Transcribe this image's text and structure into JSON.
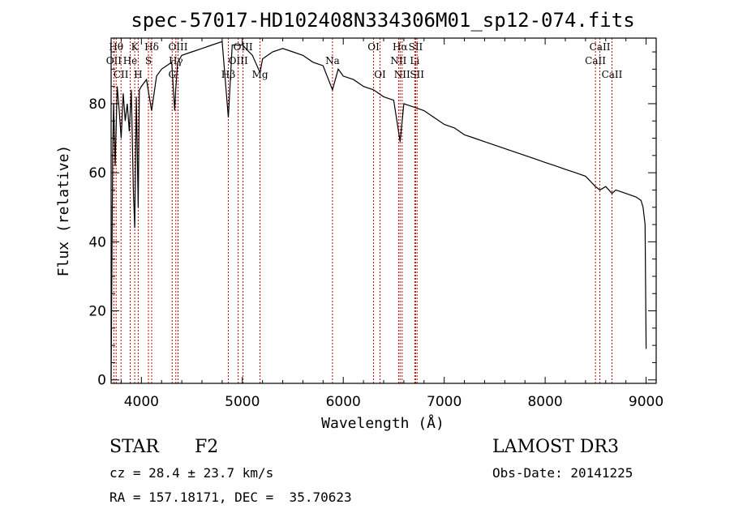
{
  "chart_data": {
    "type": "line",
    "title": "spec-57017-HD102408N334306M01_sp12-074.fits",
    "xlabel": "Wavelength (Å)",
    "ylabel": "Flux (relative)",
    "xlim": [
      3700,
      9100
    ],
    "ylim": [
      -1,
      99
    ],
    "xticks": [
      4000,
      5000,
      6000,
      7000,
      8000,
      9000
    ],
    "yticks": [
      0,
      20,
      40,
      60,
      80
    ],
    "grid": false,
    "line_color": "#000000",
    "marker_color": "#cc0000",
    "series": [
      {
        "name": "flux",
        "x": [
          3700,
          3715,
          3725,
          3740,
          3760,
          3780,
          3800,
          3820,
          3840,
          3860,
          3880,
          3900,
          3920,
          3934,
          3950,
          3968,
          3980,
          4000,
          4050,
          4101,
          4150,
          4200,
          4250,
          4300,
          4330,
          4340,
          4360,
          4400,
          4500,
          4600,
          4700,
          4800,
          4861,
          4900,
          5000,
          5100,
          5175,
          5200,
          5300,
          5400,
          5500,
          5600,
          5700,
          5800,
          5893,
          5950,
          6000,
          6100,
          6200,
          6300,
          6400,
          6500,
          6563,
          6600,
          6700,
          6800,
          6900,
          7000,
          7100,
          7200,
          7300,
          7400,
          7500,
          7600,
          7700,
          7800,
          7900,
          8000,
          8100,
          8200,
          8300,
          8400,
          8498,
          8542,
          8600,
          8662,
          8700,
          8800,
          8900,
          8950,
          8970,
          8990,
          9000
        ],
        "y": [
          0,
          65,
          80,
          62,
          85,
          78,
          70,
          83,
          75,
          80,
          72,
          84,
          55,
          44,
          82,
          50,
          84,
          85,
          87,
          78,
          88,
          90,
          91,
          92,
          78,
          84,
          92,
          94,
          95,
          96,
          97,
          98,
          76,
          97,
          97,
          94,
          89,
          93,
          95,
          96,
          95,
          94,
          92,
          91,
          84,
          90,
          88,
          87,
          85,
          84,
          82,
          81,
          69,
          80,
          79,
          78,
          76,
          74,
          73,
          71,
          70,
          69,
          68,
          67,
          66,
          65,
          64,
          63,
          62,
          61,
          60,
          59,
          56,
          55,
          56,
          54,
          55,
          54,
          53,
          52,
          50,
          45,
          9
        ]
      }
    ],
    "line_markers": [
      {
        "name": "H6",
        "wavelength": 3750,
        "label": "Hθ",
        "row": 1
      },
      {
        "name": "OII",
        "wavelength": 3727,
        "label": "OII",
        "row": 2
      },
      {
        "name": "CII",
        "wavelength": 3798,
        "label": "CII",
        "row": 3
      },
      {
        "name": "H5",
        "wavelength": 3889,
        "label": "He",
        "row": 2
      },
      {
        "name": "K",
        "wavelength": 3934,
        "label": "K",
        "row": 1
      },
      {
        "name": "H",
        "wavelength": 3968,
        "label": "H",
        "row": 3
      },
      {
        "name": "Hdelta",
        "wavelength": 4102,
        "label": "Hδ",
        "row": 1
      },
      {
        "name": "S1",
        "wavelength": 4070,
        "label": "S",
        "row": 2
      },
      {
        "name": "G",
        "wavelength": 4305,
        "label": "G",
        "row": 3
      },
      {
        "name": "OIII-a",
        "wavelength": 4363,
        "label": "OIII",
        "row": 1
      },
      {
        "name": "Hgamma",
        "wavelength": 4341,
        "label": "Hγ",
        "row": 2
      },
      {
        "name": "Hbeta",
        "wavelength": 4861,
        "label": "Hβ",
        "row": 3
      },
      {
        "name": "OIII-b",
        "wavelength": 5007,
        "label": "OIII",
        "row": 1
      },
      {
        "name": "OIII-c",
        "wavelength": 4959,
        "label": "OIII",
        "row": 2
      },
      {
        "name": "Mg",
        "wavelength": 5175,
        "label": "Mg",
        "row": 3
      },
      {
        "name": "Na",
        "wavelength": 5893,
        "label": "Na",
        "row": 2
      },
      {
        "name": "OI-a",
        "wavelength": 6300,
        "label": "OI",
        "row": 1
      },
      {
        "name": "OI-b",
        "wavelength": 6364,
        "label": "OI",
        "row": 3
      },
      {
        "name": "Halpha",
        "wavelength": 6563,
        "label": "Hα",
        "row": 1
      },
      {
        "name": "NII-a",
        "wavelength": 6548,
        "label": "NII",
        "row": 2
      },
      {
        "name": "NII-b",
        "wavelength": 6583,
        "label": "NII",
        "row": 3
      },
      {
        "name": "SII-a",
        "wavelength": 6717,
        "label": "SII",
        "row": 1
      },
      {
        "name": "Li",
        "wavelength": 6708,
        "label": "Li",
        "row": 2
      },
      {
        "name": "SII-b",
        "wavelength": 6731,
        "label": "SII",
        "row": 3
      },
      {
        "name": "CaII-a",
        "wavelength": 8542,
        "label": "CaII",
        "row": 1
      },
      {
        "name": "CaII-b",
        "wavelength": 8498,
        "label": "CaII",
        "row": 2
      },
      {
        "name": "CaII-c",
        "wavelength": 8662,
        "label": "CaII",
        "row": 3
      }
    ]
  },
  "info": {
    "object_class": "STAR",
    "subclass": "F2",
    "survey": "LAMOST DR3",
    "cz": "cz = 28.4 ± 23.7 km/s",
    "obs_date": "Obs-Date: 20141225",
    "coords": "RA = 157.18171, DEC =  35.70623"
  }
}
